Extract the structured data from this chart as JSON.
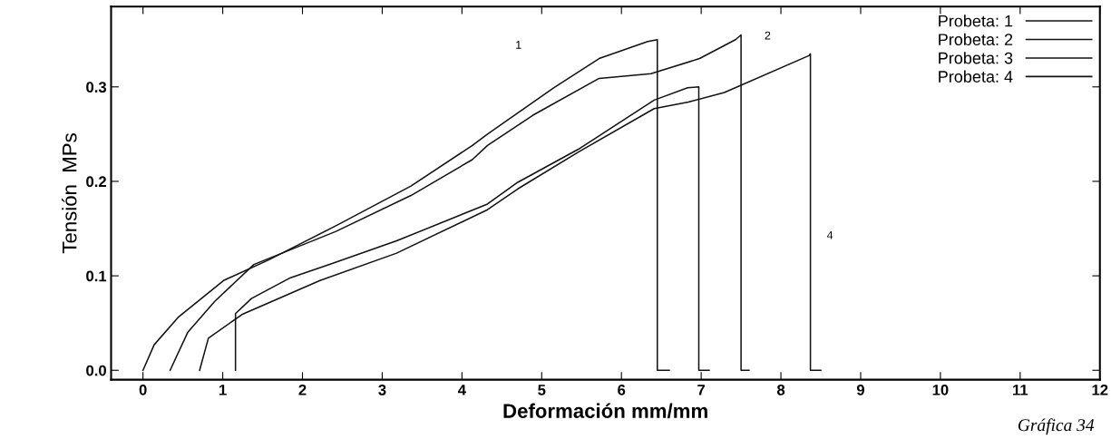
{
  "chart_data": {
    "type": "line",
    "xlabel": "Deformación mm/mm",
    "ylabel": "Tensión  MPs",
    "xlim": [
      -0.4,
      12.0
    ],
    "ylim": [
      -0.01,
      0.385
    ],
    "xticks": [
      0,
      1,
      2,
      3,
      4,
      5,
      6,
      7,
      8,
      9,
      10,
      11,
      12
    ],
    "yticks": [
      {
        "value": 0,
        "label": "0.0"
      },
      {
        "value": 0.1,
        "label": "0.1"
      },
      {
        "value": 0.2,
        "label": "0.2"
      },
      {
        "value": 0.3,
        "label": "0.3"
      }
    ],
    "legend": "top right",
    "grid": false,
    "marker": "none",
    "line_style": "solid",
    "series": [
      {
        "name": "Probeta: 1",
        "color": "#111111",
        "x": [
          0,
          0.14,
          0.44,
          1.01,
          1.58,
          2.42,
          3.36,
          4.13,
          4.32,
          5.15,
          5.72,
          6.33,
          6.45,
          6.45,
          6.6
        ],
        "values": [
          0,
          0.027,
          0.056,
          0.095,
          0.117,
          0.153,
          0.195,
          0.238,
          0.25,
          0.299,
          0.33,
          0.348,
          0.35,
          0,
          0
        ]
      },
      {
        "name": "Probeta: 2",
        "color": "#111111",
        "x": [
          0.34,
          0.56,
          0.9,
          1.39,
          2.42,
          3.36,
          4.13,
          4.32,
          4.89,
          5.72,
          6.37,
          6.98,
          7.43,
          7.5,
          7.5,
          7.6
        ],
        "values": [
          0,
          0.04,
          0.073,
          0.112,
          0.147,
          0.185,
          0.223,
          0.238,
          0.27,
          0.309,
          0.314,
          0.33,
          0.35,
          0.355,
          0,
          0
        ]
      },
      {
        "name": "Probeta: 3",
        "color": "#111111",
        "x": [
          1.16,
          1.16,
          1.36,
          1.85,
          2.34,
          3.18,
          4.32,
          4.7,
          5.46,
          6.41,
          6.83,
          6.97,
          6.97,
          7.1
        ],
        "values": [
          0,
          0.06,
          0.076,
          0.098,
          0.112,
          0.137,
          0.176,
          0.199,
          0.234,
          0.286,
          0.299,
          0.3,
          0,
          0
        ]
      },
      {
        "name": "Probeta: 4",
        "color": "#111111",
        "x": [
          0.71,
          0.82,
          1.24,
          2.22,
          3.18,
          4.32,
          4.7,
          5.46,
          6.41,
          6.84,
          7.29,
          8.35,
          8.37,
          8.37,
          8.5
        ],
        "values": [
          0,
          0.034,
          0.059,
          0.095,
          0.124,
          0.17,
          0.192,
          0.231,
          0.277,
          0.284,
          0.294,
          0.333,
          0.335,
          0,
          0
        ]
      }
    ],
    "annotations": [
      "1",
      "2",
      "4",
      "Gráfica 34"
    ]
  }
}
